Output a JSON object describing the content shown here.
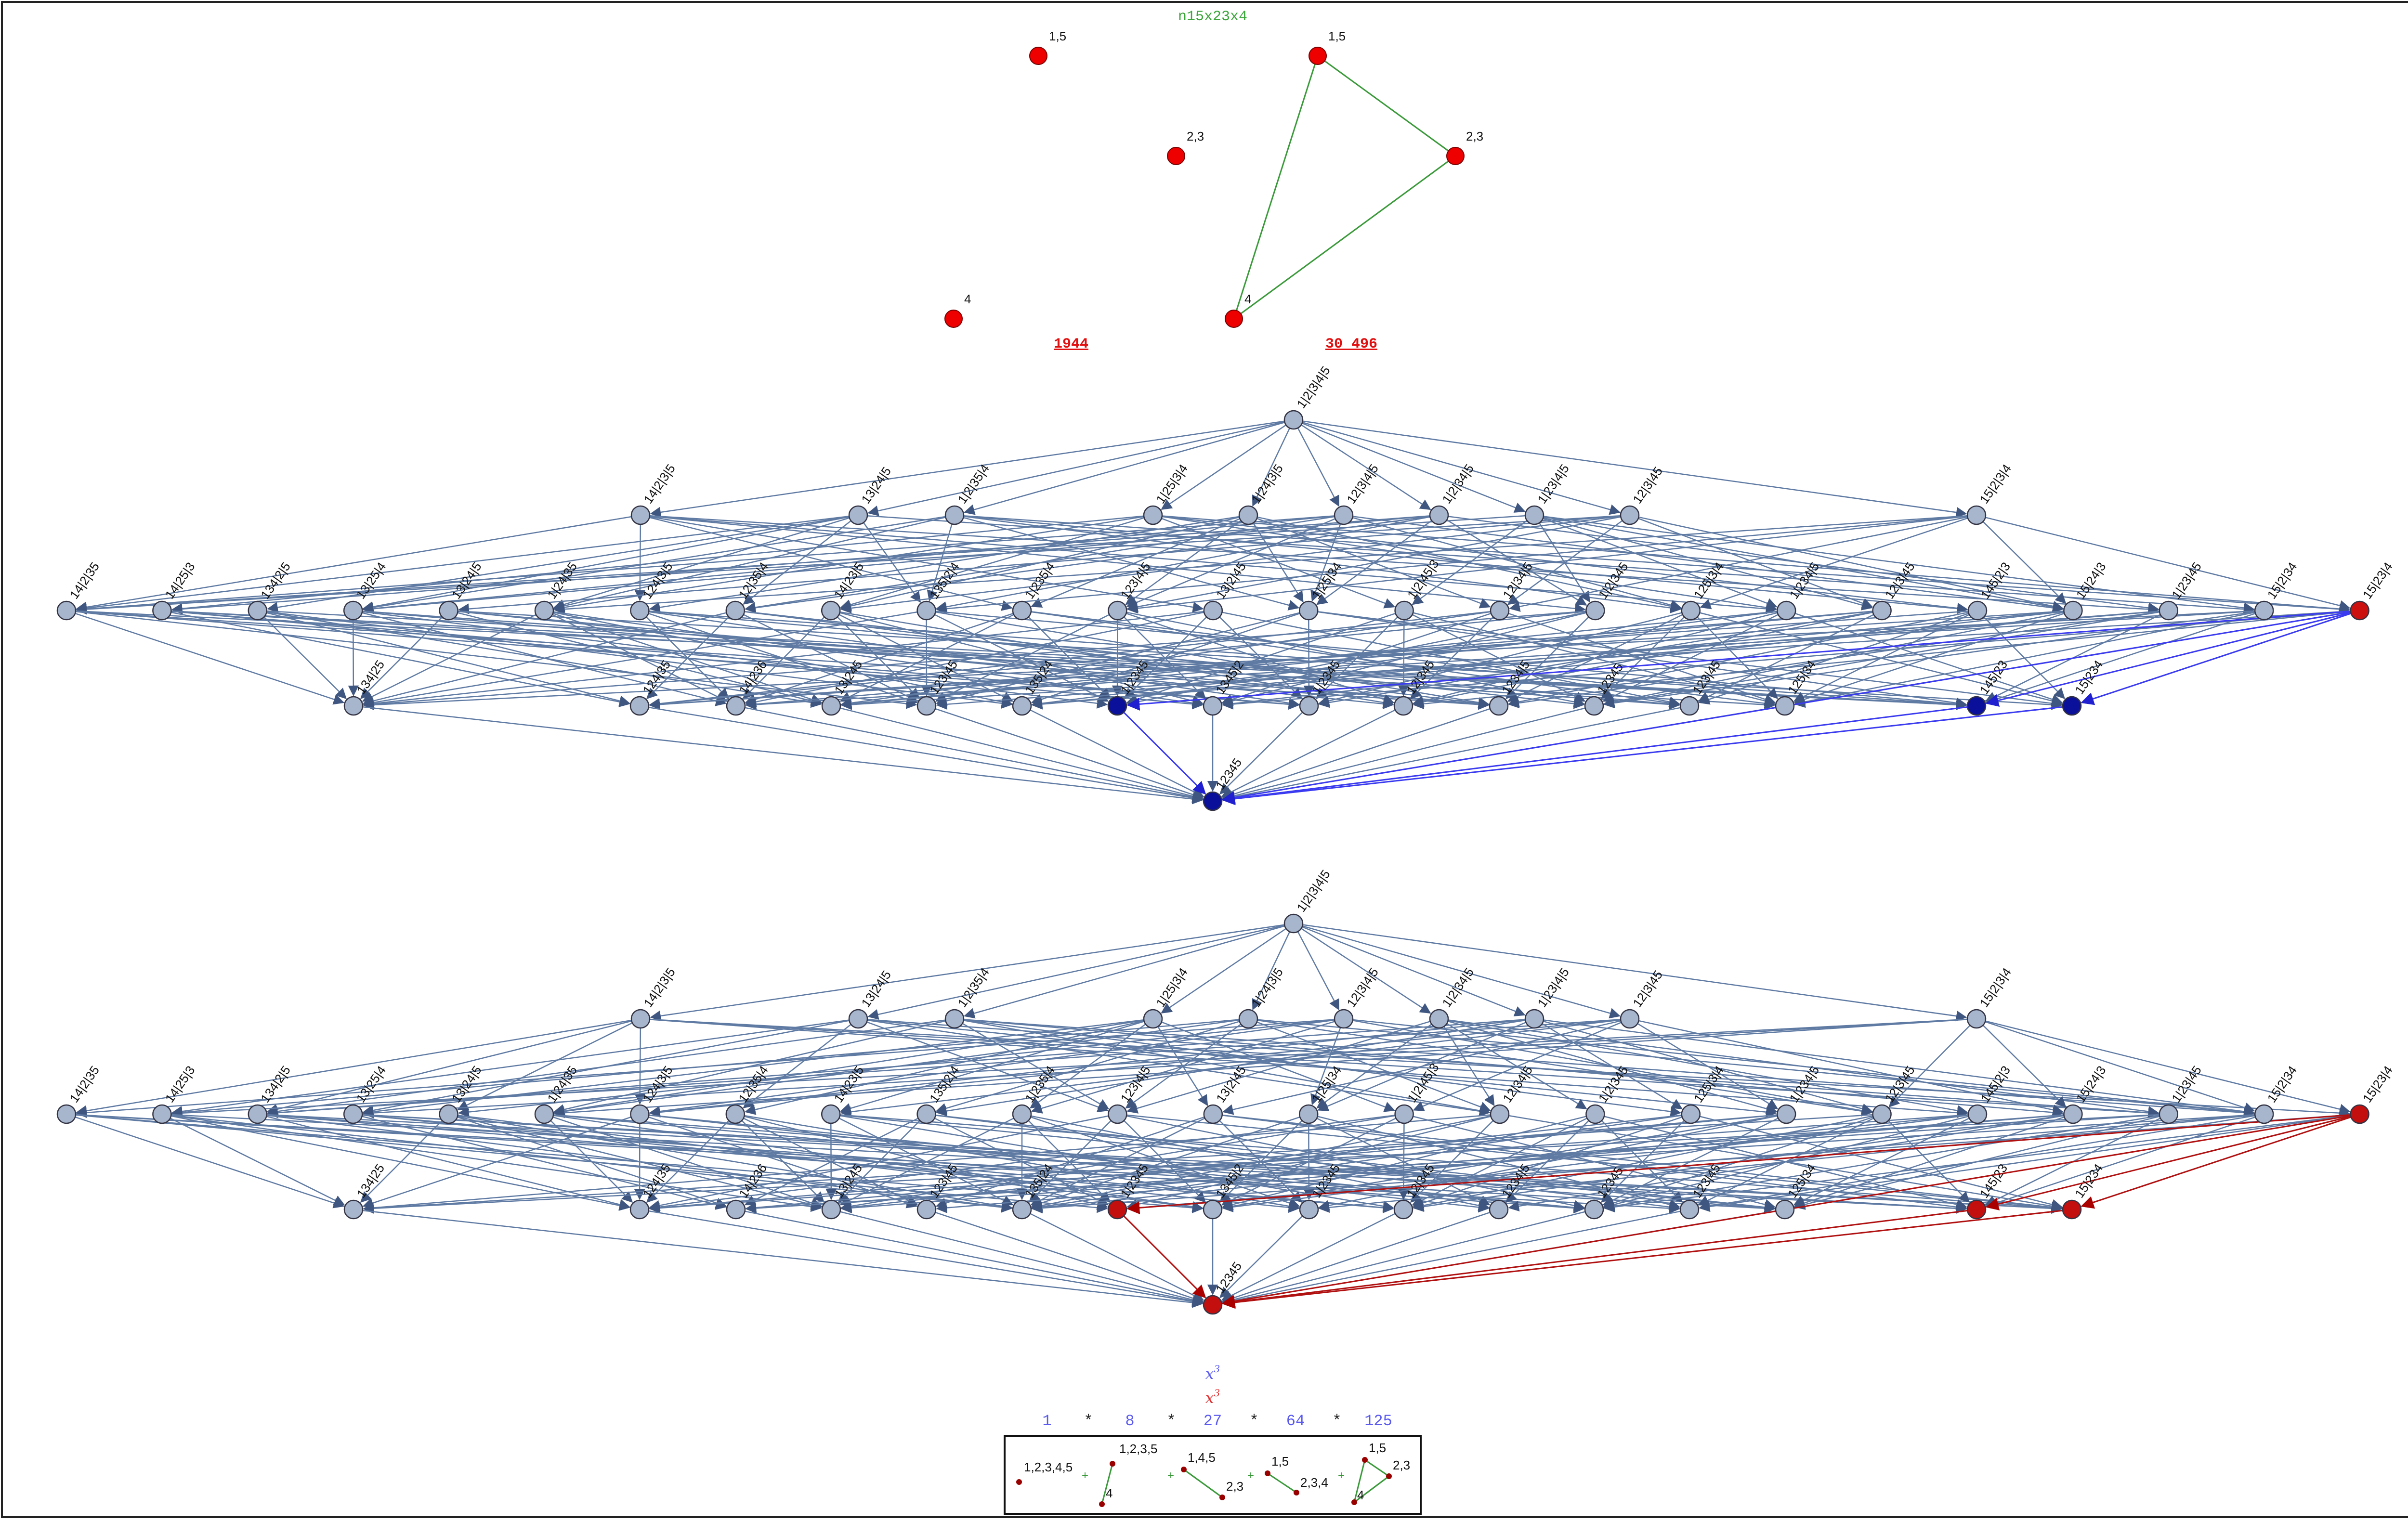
{
  "header": {
    "title": "n15x23x4",
    "title_color": "#3aa63a",
    "count_left": "1944",
    "count_right": "30 496",
    "count_color": "#e01010"
  },
  "point_sets": {
    "left": [
      {
        "label": "1,5"
      },
      {
        "label": "2,3"
      },
      {
        "label": "4"
      }
    ],
    "right": [
      {
        "label": "1,5"
      },
      {
        "label": "2,3"
      },
      {
        "label": "4"
      }
    ],
    "right_edges_color": "#3a9a3a"
  },
  "lattices": {
    "node_fill": "#a7b6cc",
    "edge_color": "#5f7aa3",
    "labels": {
      "top": [
        "1|2|3|4|5"
      ],
      "level1": [
        "14|2|3|5",
        "13|24|5",
        "1|2|35|4",
        "1|25|3|4",
        "1|24|3|5",
        "12|3|4|5",
        "1|2|34|5",
        "1|23|4|5",
        "12|3|45",
        "15|2|3|4"
      ],
      "level2": [
        "14|2|35",
        "14|25|3",
        "134|2|5",
        "13|25|4",
        "13|24|5",
        "1|24|35",
        "124|3|5",
        "12|35|4",
        "14|23|5",
        "135|2|4",
        "1|235|4",
        "123|4|5",
        "13|2|45",
        "1|25|34",
        "1|2|45|3",
        "12|34|5",
        "1|2|345",
        "125|3|4",
        "1|234|5",
        "12|3|45",
        "145|2|3",
        "15|24|3",
        "1|23|45",
        "15|2|34",
        "15|23|4"
      ],
      "level3": [
        "134|25",
        "124|35",
        "14|236",
        "13|245",
        "123|45",
        "135|24",
        "1|2345",
        "1345|2",
        "1|2345",
        "12|345",
        "1234|5",
        "12345",
        "123|45",
        "125|34",
        "145|23",
        "15|234"
      ],
      "bottom": [
        "12345"
      ]
    },
    "upper": {
      "highlight_color": "#0b109a",
      "highlight_edge_color": "#3a3af0",
      "special_color": "#cc1010"
    },
    "lower": {
      "highlight_color": "#c40f0f",
      "highlight_edge_color": "#b01010"
    }
  },
  "footer": {
    "x3_blue": "x",
    "x3_red": "x",
    "exponent": "3",
    "sequence": [
      "1",
      "8",
      "27",
      "64",
      "125"
    ],
    "separator": "*",
    "seq_color": "#5a5af0",
    "legend": {
      "items": [
        {
          "labels": [
            "1,2,3,4,5"
          ]
        },
        {
          "labels": [
            "1,2,3,5",
            "4"
          ]
        },
        {
          "labels": [
            "1,4,5",
            "2,3"
          ]
        },
        {
          "labels": [
            "1,5",
            "2,3,4"
          ]
        },
        {
          "labels": [
            "1,5",
            "2,3",
            "4"
          ]
        }
      ],
      "plus": "+"
    }
  }
}
